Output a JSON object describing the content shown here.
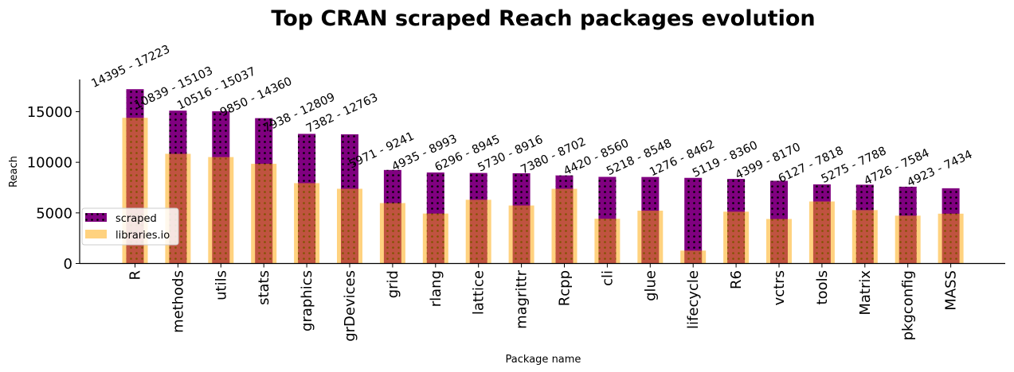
{
  "chart_data": {
    "type": "bar",
    "title": "Top CRAN scraped Reach packages evolution",
    "xlabel": "Package name",
    "ylabel": "Reach",
    "ylim": [
      0,
      18000
    ],
    "yticks": [
      0,
      5000,
      10000,
      15000
    ],
    "grid": false,
    "legend_position": "center-left",
    "categories": [
      "R",
      "methods",
      "utils",
      "stats",
      "graphics",
      "grDevices",
      "grid",
      "rlang",
      "lattice",
      "magrittr",
      "Rcpp",
      "cli",
      "glue",
      "lifecycle",
      "R6",
      "vctrs",
      "tools",
      "Matrix",
      "pkgconfig",
      "MASS"
    ],
    "series": [
      {
        "name": "scraped",
        "color": "#800080",
        "pattern": "dots",
        "values": [
          17223,
          15103,
          15037,
          14360,
          12809,
          12763,
          9241,
          8993,
          8945,
          8916,
          8702,
          8560,
          8548,
          8462,
          8360,
          8170,
          7818,
          7788,
          7584,
          7434
        ]
      },
      {
        "name": "libraries.io",
        "color": "#FFA500",
        "values": [
          14395,
          10839,
          10516,
          9850,
          7938,
          7382,
          5971,
          4935,
          6296,
          5730,
          7380,
          4420,
          5218,
          1276,
          5119,
          4399,
          6127,
          5275,
          4726,
          4923
        ]
      }
    ],
    "data_labels": [
      "14395 - 17223",
      "10839 - 15103",
      "10516 - 15037",
      "9850 - 14360",
      "7938 - 12809",
      "7382 - 12763",
      "5971 - 9241",
      "4935 - 8993",
      "6296 - 8945",
      "5730 - 8916",
      "7380 - 8702",
      "4420 - 8560",
      "5218 - 8548",
      "1276 - 8462",
      "5119 - 8360",
      "4399 - 8170",
      "6127 - 7818",
      "5275 - 7788",
      "4726 - 7584",
      "4923 - 7434"
    ]
  }
}
